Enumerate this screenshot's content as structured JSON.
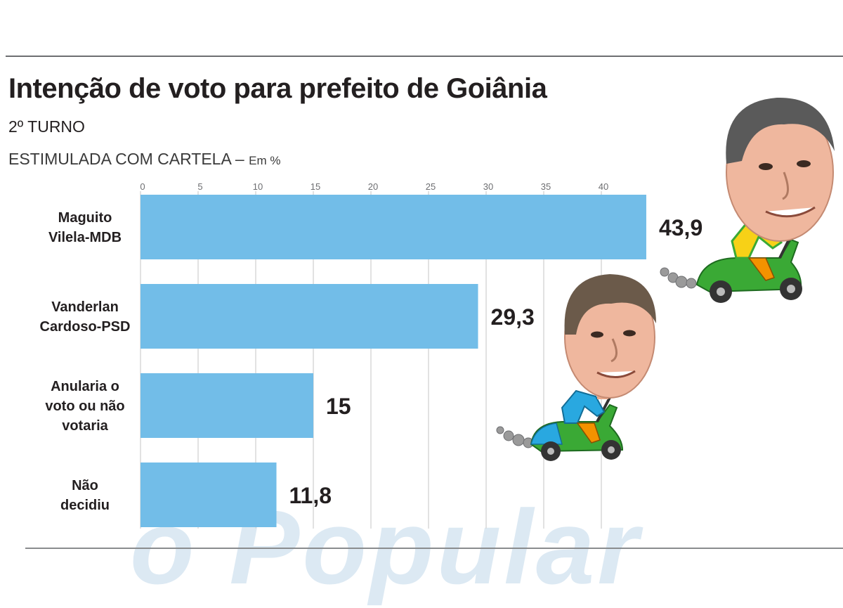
{
  "header": {
    "title": "Intenção de voto para prefeito de Goiânia",
    "subtitle": "2º TURNO",
    "description": "ESTIMULADA COM CARTELA –",
    "unit_note": "Em %"
  },
  "watermark": "o Popular",
  "chart_data": {
    "type": "bar",
    "orientation": "horizontal",
    "title": "Intenção de voto para prefeito de Goiânia",
    "subtitle": "2º TURNO",
    "xlabel": "",
    "ylabel": "",
    "xlim": [
      0,
      45
    ],
    "ticks": [
      0,
      5,
      10,
      15,
      20,
      25,
      30,
      35,
      40
    ],
    "grid": true,
    "bar_color": "#72bde8",
    "categories": [
      [
        "Maguito",
        "Vilela-MDB"
      ],
      [
        "Vanderlan",
        "Cardoso-PSD"
      ],
      [
        "Anularia o",
        "voto ou não",
        "votaria"
      ],
      [
        "Não",
        "decidiu"
      ]
    ],
    "values": [
      43.9,
      29.3,
      15,
      11.8
    ],
    "value_labels": [
      "43,9",
      "29,3",
      "15",
      "11,8"
    ]
  },
  "illustrations": [
    {
      "name": "maguito-scooter-caricature",
      "vehicle_color": "#3aa935",
      "rider_colors": [
        "#f7d117",
        "#3aa935"
      ]
    },
    {
      "name": "vanderlan-scooter-caricature",
      "vehicle_color": "#3aa935",
      "front_color": "#29a8e0",
      "rider_colors": [
        "#29a8e0",
        "#f39200"
      ]
    }
  ]
}
